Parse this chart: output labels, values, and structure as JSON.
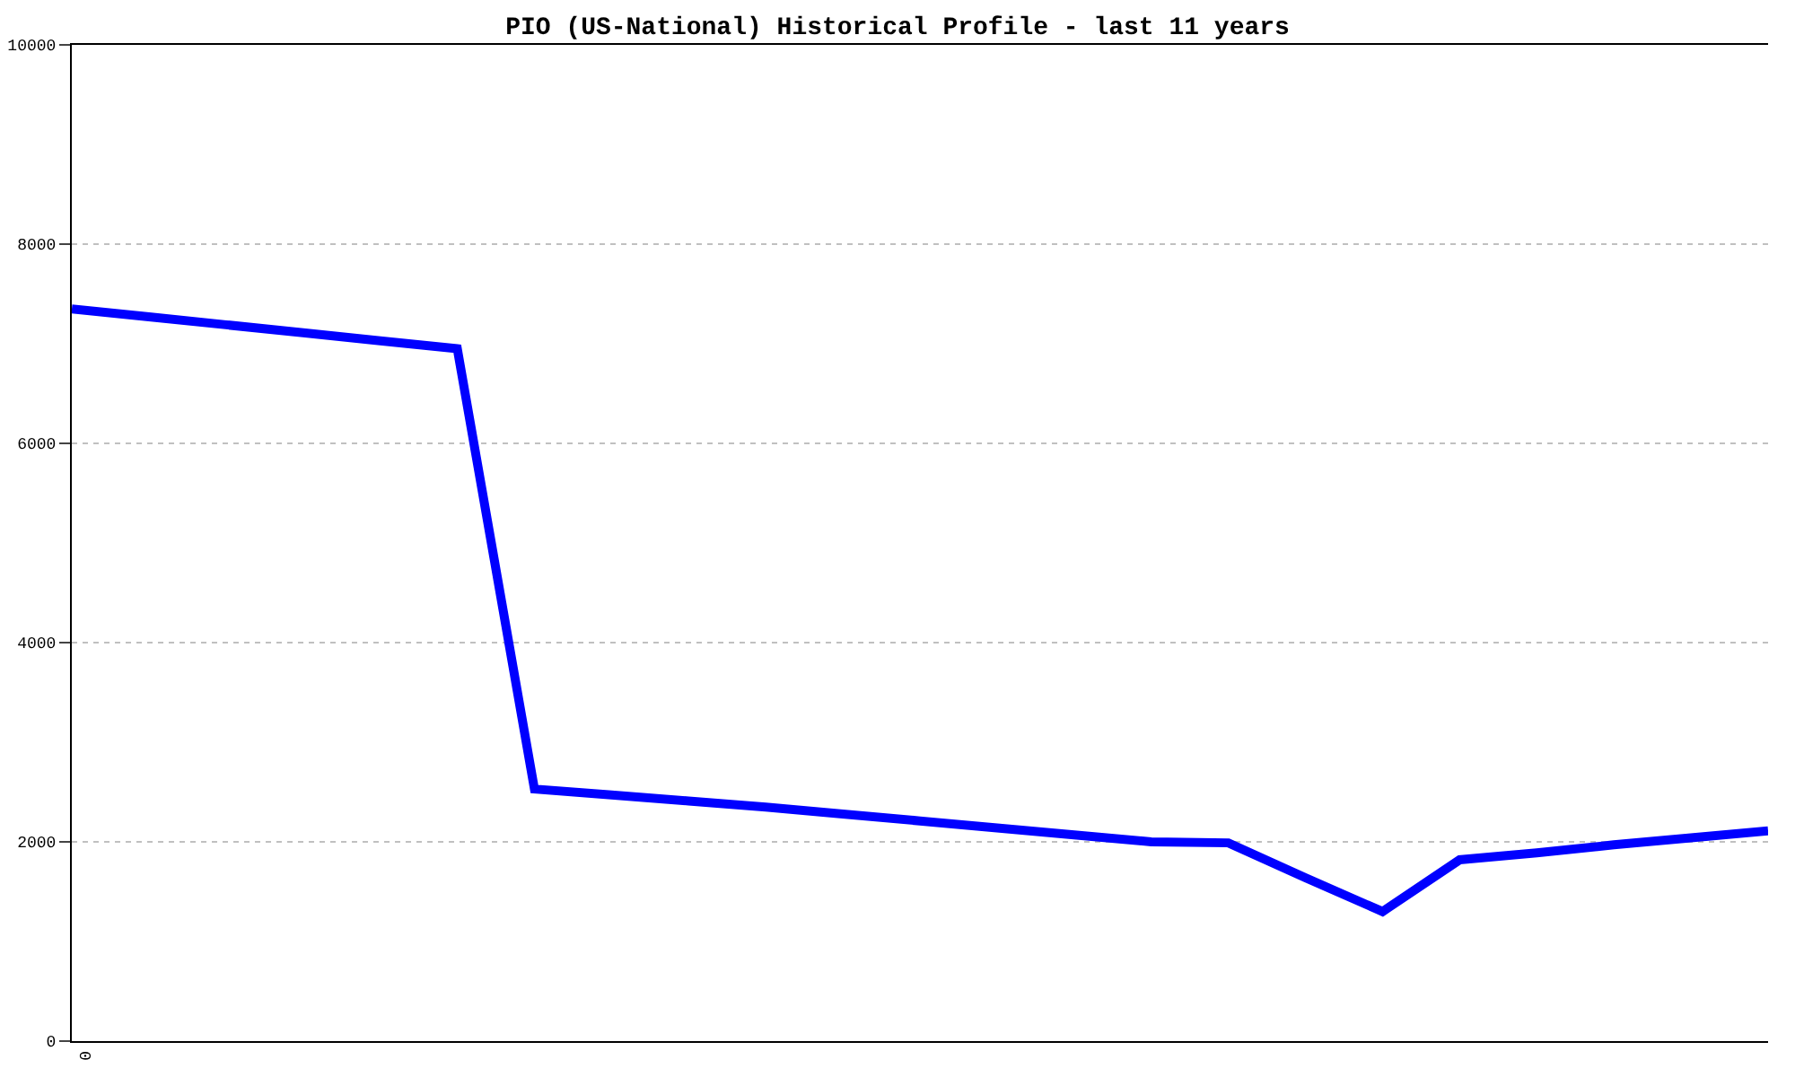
{
  "chart_data": {
    "type": "line",
    "title": "PIO (US-National) Historical Profile - last 11 years",
    "categories": [
      null,
      null,
      null,
      null,
      null,
      null,
      null,
      null,
      null,
      null,
      null,
      null,
      null,
      null,
      null,
      null,
      null,
      null,
      null,
      null,
      null,
      null,
      null
    ],
    "series": [
      {
        "color": "#0000ff",
        "values": [
          7350,
          7270,
          7190,
          7110,
          7030,
          6950,
          2530,
          2470,
          2410,
          2350,
          2280,
          2210,
          2140,
          2070,
          2000,
          1990,
          1640,
          1300,
          1820,
          1890,
          1970,
          2040,
          2110
        ]
      }
    ],
    "annotations": [
      "0"
    ],
    "ylim": [
      0,
      10000
    ],
    "yticks": [
      0,
      2000,
      4000,
      6000,
      8000,
      10000
    ],
    "grid": "y",
    "legend": false,
    "marker": "none",
    "line_style": "solid"
  }
}
